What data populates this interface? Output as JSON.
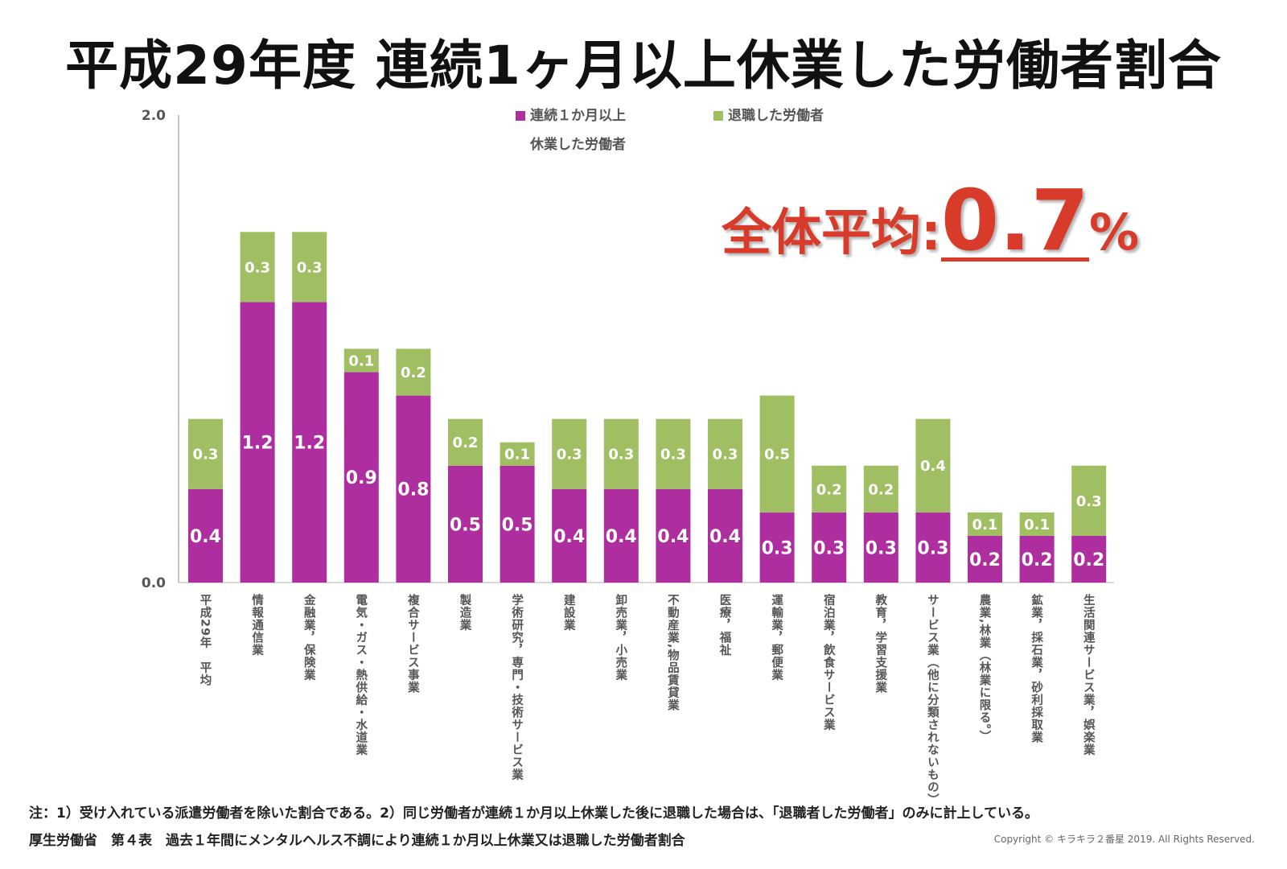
{
  "title": "平成29年度 連続1ヶ月以上休業した労働者割合",
  "chart_data": {
    "type": "bar",
    "stacked": true,
    "categories": [
      "平成29年　平均",
      "情報通信業",
      "金融業，保険業",
      "電気・ガス・熱供給・水道業",
      "複合サービス事業",
      "製造業",
      "学術研究，専門・技術サービス業",
      "建設業",
      "卸売業，小売業",
      "不動産業,物品賃貸業",
      "医療，福祉",
      "運輸業，郵便業",
      "宿泊業，飲食サービス業",
      "教育，学習支援業",
      "サービス業（他に分類されないもの）",
      "農業,林業（林業に限る。）",
      "鉱業，採石業，砂利採取業",
      "生活関連サービス業，娯楽業"
    ],
    "series": [
      {
        "name": "連続１か月以上休業した労働者",
        "color": "#ae2ea0",
        "values": [
          0.4,
          1.2,
          1.2,
          0.9,
          0.8,
          0.5,
          0.5,
          0.4,
          0.4,
          0.4,
          0.4,
          0.3,
          0.3,
          0.3,
          0.3,
          0.2,
          0.2,
          0.2
        ]
      },
      {
        "name": "退職した労働者",
        "color": "#9fbf62",
        "values": [
          0.3,
          0.3,
          0.3,
          0.1,
          0.2,
          0.2,
          0.1,
          0.3,
          0.3,
          0.3,
          0.3,
          0.5,
          0.2,
          0.2,
          0.4,
          0.1,
          0.1,
          0.3
        ]
      }
    ],
    "ylim": [
      0,
      2.0
    ],
    "yticks": [
      "0.0",
      "2.0"
    ],
    "grid": false,
    "legend": "top",
    "legend_lines": [
      [
        "連続１か月以上",
        "休業した労働者"
      ],
      [
        "退職した労働者"
      ]
    ],
    "annotation": {
      "label": "全体平均:",
      "value": "0.7",
      "unit": "%",
      "color": "#d93b2a"
    }
  },
  "notes": {
    "note1": "注：1）受け入れている派遣労働者を除いた割合である。2）同じ労働者が連続１か月以上休業した後に退職した場合は、「退職者した労働者」のみに計上している。",
    "source": "厚生労働省　第４表　過去１年間にメンタルヘルス不調により連続１か月以上休業又は退職した労働者割合",
    "copyright": "Copyright © キラキラ２番星 2019. All Rights Reserved."
  }
}
